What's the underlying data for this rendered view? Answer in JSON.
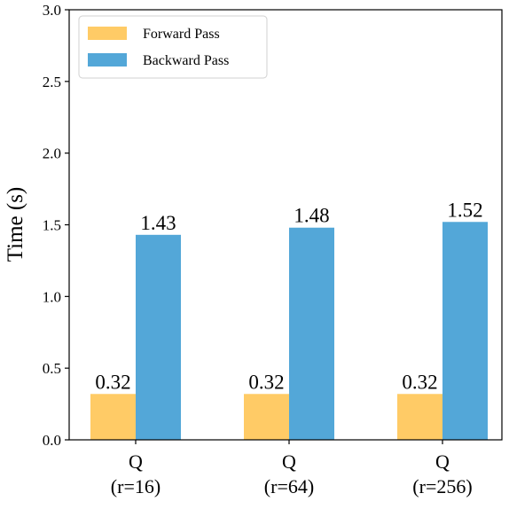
{
  "chart_data": {
    "type": "bar",
    "categories": [
      [
        "Q",
        "(r=16)"
      ],
      [
        "Q",
        "(r=64)"
      ],
      [
        "Q",
        "(r=256)"
      ]
    ],
    "series": [
      {
        "name": "Forward Pass",
        "values": [
          0.32,
          0.32,
          0.32
        ],
        "labels": [
          "0.32",
          "0.32",
          "0.32"
        ],
        "color": "#FFCB66"
      },
      {
        "name": "Backward Pass",
        "values": [
          1.43,
          1.48,
          1.52
        ],
        "labels": [
          "1.43",
          "1.48",
          "1.52"
        ],
        "color": "#53A7D8"
      }
    ],
    "ylabel": "Time (s)",
    "xlabel": "",
    "ylim": [
      0,
      3.0
    ],
    "yticks": [
      0.0,
      0.5,
      1.0,
      1.5,
      2.0,
      2.5,
      3.0
    ],
    "ytick_labels": [
      "0.0",
      "0.5",
      "1.0",
      "1.5",
      "2.0",
      "2.5",
      "3.0"
    ],
    "grid": false,
    "legend_position": "top-left"
  }
}
